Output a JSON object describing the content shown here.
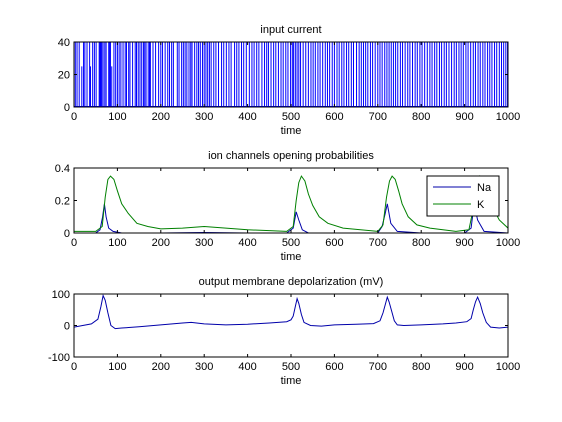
{
  "chart_data": [
    {
      "type": "line",
      "title": "input current",
      "xlabel": "time",
      "ylabel": "",
      "xlim": [
        0,
        1000
      ],
      "ylim": [
        0,
        40
      ],
      "x_ticks": [
        0,
        100,
        200,
        300,
        400,
        500,
        600,
        700,
        800,
        900,
        1000
      ],
      "y_ticks": [
        0,
        20,
        40
      ],
      "grid": false,
      "series": [
        {
          "color": "#0000ff",
          "style": "spike-train",
          "spikes_x": [
            3,
            7,
            12,
            18,
            22,
            25,
            30,
            36,
            38,
            43,
            47,
            51,
            58,
            60,
            62,
            64,
            67,
            71,
            74,
            80,
            82,
            84,
            87,
            92,
            96,
            100,
            104,
            108,
            113,
            118,
            121,
            126,
            129,
            135,
            141,
            144,
            148,
            152,
            156,
            160,
            163,
            166,
            171,
            174,
            176,
            182,
            188,
            195,
            200,
            204,
            210,
            216,
            220,
            225,
            229,
            238,
            242,
            248,
            252,
            256,
            260,
            265,
            269,
            272,
            278,
            283,
            287,
            291,
            296,
            300,
            304,
            308,
            312,
            316,
            322,
            327,
            333,
            340,
            345,
            351,
            357,
            362,
            370,
            375,
            380,
            386,
            391,
            397,
            404,
            410,
            415,
            421,
            426,
            433,
            439,
            444,
            448,
            454,
            460,
            465,
            471,
            477,
            482,
            488,
            493,
            499,
            503,
            506,
            510,
            514,
            518,
            522,
            528,
            534,
            540,
            546,
            551,
            556,
            562,
            567,
            573,
            579,
            584,
            589,
            595,
            600,
            606,
            611,
            617,
            622,
            628,
            633,
            639,
            644,
            651,
            657,
            662,
            667,
            672,
            677,
            683,
            688,
            694,
            700,
            705,
            710,
            716,
            721,
            726,
            731,
            736,
            741,
            746,
            752,
            757,
            763,
            769,
            774,
            780,
            786,
            791,
            797,
            802,
            808,
            814,
            820,
            825,
            831,
            836,
            842,
            847,
            853,
            858,
            864,
            870,
            876,
            881,
            887,
            892,
            897,
            903,
            908,
            914,
            920,
            925,
            931,
            936,
            942,
            947,
            953,
            958,
            963,
            969,
            974,
            980,
            985,
            990,
            995,
            999
          ],
          "spike_height": [
            40,
            40,
            40,
            25,
            40,
            40,
            40,
            40,
            25,
            40,
            40,
            40,
            40,
            40,
            40,
            40,
            40,
            40,
            40,
            40,
            40,
            40,
            25,
            40,
            40,
            40,
            40,
            40,
            40,
            40,
            40,
            40,
            40,
            40,
            40,
            40,
            40,
            40,
            40,
            40,
            40,
            40,
            40,
            40,
            40,
            40,
            40,
            40,
            40,
            40,
            40,
            40,
            40,
            40,
            40,
            40,
            40,
            40,
            40,
            40,
            40,
            40,
            40,
            40,
            40,
            40,
            40,
            40,
            40,
            40,
            40,
            40,
            40,
            40,
            40,
            40,
            40,
            40,
            40,
            40,
            40,
            40,
            40,
            40,
            40,
            40,
            40,
            40,
            40,
            40,
            40,
            40,
            40,
            40,
            40,
            40,
            40,
            40,
            40,
            40,
            40,
            40,
            40,
            40,
            40,
            40,
            40,
            40,
            40,
            40,
            40,
            40,
            40,
            40,
            40,
            40,
            40,
            40,
            40,
            40,
            40,
            40,
            40,
            40,
            40,
            40,
            40,
            40,
            40,
            40,
            40,
            40,
            40,
            40,
            40,
            40,
            40,
            40,
            40,
            40,
            40,
            40,
            40,
            40,
            40,
            40,
            40,
            40,
            40,
            40,
            40,
            40,
            40,
            40,
            40,
            40,
            40,
            40,
            40,
            40,
            40,
            40,
            40,
            40,
            40,
            40,
            40,
            40,
            40,
            40,
            40,
            40,
            40,
            40,
            40,
            40,
            40,
            40,
            40,
            40,
            40,
            40,
            40,
            40,
            40,
            40,
            40,
            40,
            40,
            40,
            40,
            40,
            40,
            40,
            40,
            40,
            40,
            40,
            40
          ]
        }
      ]
    },
    {
      "type": "line",
      "title": "ion channels opening probabilities",
      "xlabel": "time",
      "ylabel": "",
      "xlim": [
        0,
        1000
      ],
      "ylim": [
        0,
        0.4
      ],
      "x_ticks": [
        0,
        100,
        200,
        300,
        400,
        500,
        600,
        700,
        800,
        900,
        1000
      ],
      "y_ticks": [
        0,
        0.2,
        0.4
      ],
      "grid": false,
      "legend_position": "top-right",
      "series": [
        {
          "name": "Na",
          "color": "#0000aa",
          "x": [
            0,
            50,
            60,
            66,
            70,
            74,
            80,
            90,
            110,
            200,
            300,
            400,
            490,
            505,
            512,
            518,
            526,
            540,
            600,
            700,
            710,
            717,
            722,
            730,
            745,
            800,
            900,
            915,
            922,
            930,
            945,
            1000
          ],
          "y": [
            0,
            0,
            0.02,
            0.1,
            0.18,
            0.1,
            0.03,
            0.01,
            0,
            0,
            0.003,
            0,
            0,
            0.03,
            0.13,
            0.08,
            0.02,
            0,
            0,
            0,
            0.04,
            0.12,
            0.18,
            0.06,
            0.01,
            0,
            0,
            0.03,
            0.18,
            0.08,
            0.01,
            0
          ]
        },
        {
          "name": "K",
          "color": "#008000",
          "x": [
            0,
            50,
            65,
            72,
            78,
            84,
            92,
            100,
            110,
            125,
            145,
            170,
            200,
            250,
            300,
            350,
            400,
            450,
            490,
            505,
            512,
            518,
            524,
            532,
            540,
            550,
            565,
            585,
            620,
            700,
            712,
            720,
            727,
            733,
            740,
            748,
            756,
            770,
            790,
            820,
            880,
            910,
            920,
            928,
            935,
            945,
            960,
            980,
            1000
          ],
          "y": [
            0.01,
            0.01,
            0.04,
            0.22,
            0.33,
            0.35,
            0.33,
            0.26,
            0.18,
            0.12,
            0.06,
            0.04,
            0.025,
            0.03,
            0.04,
            0.03,
            0.02,
            0.015,
            0.01,
            0.04,
            0.2,
            0.31,
            0.35,
            0.32,
            0.24,
            0.17,
            0.1,
            0.06,
            0.03,
            0.01,
            0.05,
            0.22,
            0.32,
            0.35,
            0.33,
            0.26,
            0.18,
            0.1,
            0.05,
            0.03,
            0.01,
            0.02,
            0.15,
            0.32,
            0.35,
            0.28,
            0.18,
            0.08,
            0.03
          ]
        }
      ]
    },
    {
      "type": "line",
      "title": "output membrane depolarization (mV)",
      "xlabel": "time",
      "ylabel": "",
      "xlim": [
        0,
        1000
      ],
      "ylim": [
        -100,
        100
      ],
      "x_ticks": [
        0,
        100,
        200,
        300,
        400,
        500,
        600,
        700,
        800,
        900,
        1000
      ],
      "y_ticks": [
        -100,
        0,
        100
      ],
      "grid": false,
      "series": [
        {
          "color": "#0000aa",
          "x": [
            0,
            20,
            40,
            55,
            62,
            67,
            72,
            78,
            85,
            95,
            110,
            150,
            200,
            250,
            270,
            300,
            350,
            400,
            450,
            490,
            500,
            505,
            510,
            514,
            518,
            524,
            530,
            545,
            570,
            600,
            650,
            690,
            705,
            712,
            718,
            722,
            726,
            732,
            738,
            745,
            760,
            800,
            850,
            880,
            905,
            915,
            920,
            925,
            930,
            936,
            942,
            950,
            960,
            980,
            1000
          ],
          "y": [
            -5,
            0,
            5,
            20,
            60,
            95,
            80,
            40,
            0,
            -10,
            -8,
            -4,
            2,
            8,
            10,
            5,
            2,
            4,
            8,
            12,
            18,
            30,
            60,
            85,
            70,
            35,
            10,
            0,
            -2,
            2,
            4,
            6,
            15,
            40,
            70,
            90,
            75,
            45,
            15,
            2,
            0,
            2,
            5,
            8,
            12,
            22,
            50,
            75,
            90,
            70,
            40,
            10,
            -5,
            -8,
            -5
          ]
        }
      ]
    }
  ]
}
